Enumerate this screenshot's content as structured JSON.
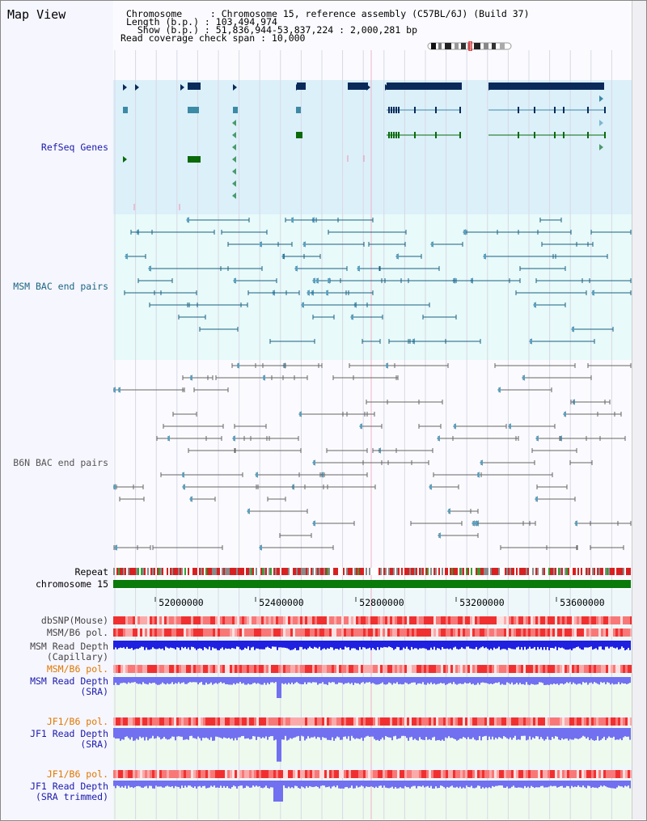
{
  "title": "Map View",
  "header": {
    "chromosome_line": "Chromosome     : Chromosome 15, reference assembly (C57BL/6J) (Build 37)",
    "length_line": "Length (b.p.) : 103,494,974",
    "show_line": "  Show (b.p.) : 51,836,944-53,837,224 : 2,000,281 bp",
    "coverage_line": "Read coverage check span : 10,000"
  },
  "tracks": {
    "refseq": "RefSeq Genes",
    "msm_bac": "MSM BAC end pairs",
    "b6n_bac": "B6N BAC end pairs",
    "repeat": "Repeat",
    "chromosome": "chromosome 15",
    "dbsnp": "dbSNP(Mouse)",
    "msm_b6_pol": "MSM/B6 pol.",
    "msm_read_depth": "MSM Read Depth",
    "capillary": "(Capillary)",
    "msm_b6_pol2": "MSM/B6 pol.",
    "msm_read_depth_sra": "MSM Read Depth",
    "sra": "(SRA)",
    "jf1_b6_pol": "JF1/B6 pol.",
    "jf1_read_depth": "JF1 Read Depth",
    "sra2": "(SRA)",
    "jf1_b6_pol2": "JF1/B6 pol.",
    "jf1_read_depth_trim": "JF1 Read Depth",
    "sra_trimmed": "(SRA trimmed)"
  },
  "axis": {
    "ticks": [
      "52000000",
      "52400000",
      "52800000",
      "53200000",
      "53600000"
    ]
  },
  "colors": {
    "refseq_bg": "#dcf0fa",
    "msm_bg": "#e8fafa",
    "gene_dark": "#0a2a5a",
    "gene_teal": "#3c8aa6",
    "gene_green": "#0a6a0a",
    "msm_line": "#1a6080",
    "b6n_line": "#666666",
    "label_blue": "#1a1aaa",
    "label_teal": "#1a6680",
    "label_orange": "#e07800",
    "depth_blue": "#2020e0",
    "depth_light": "#7070f0"
  }
}
